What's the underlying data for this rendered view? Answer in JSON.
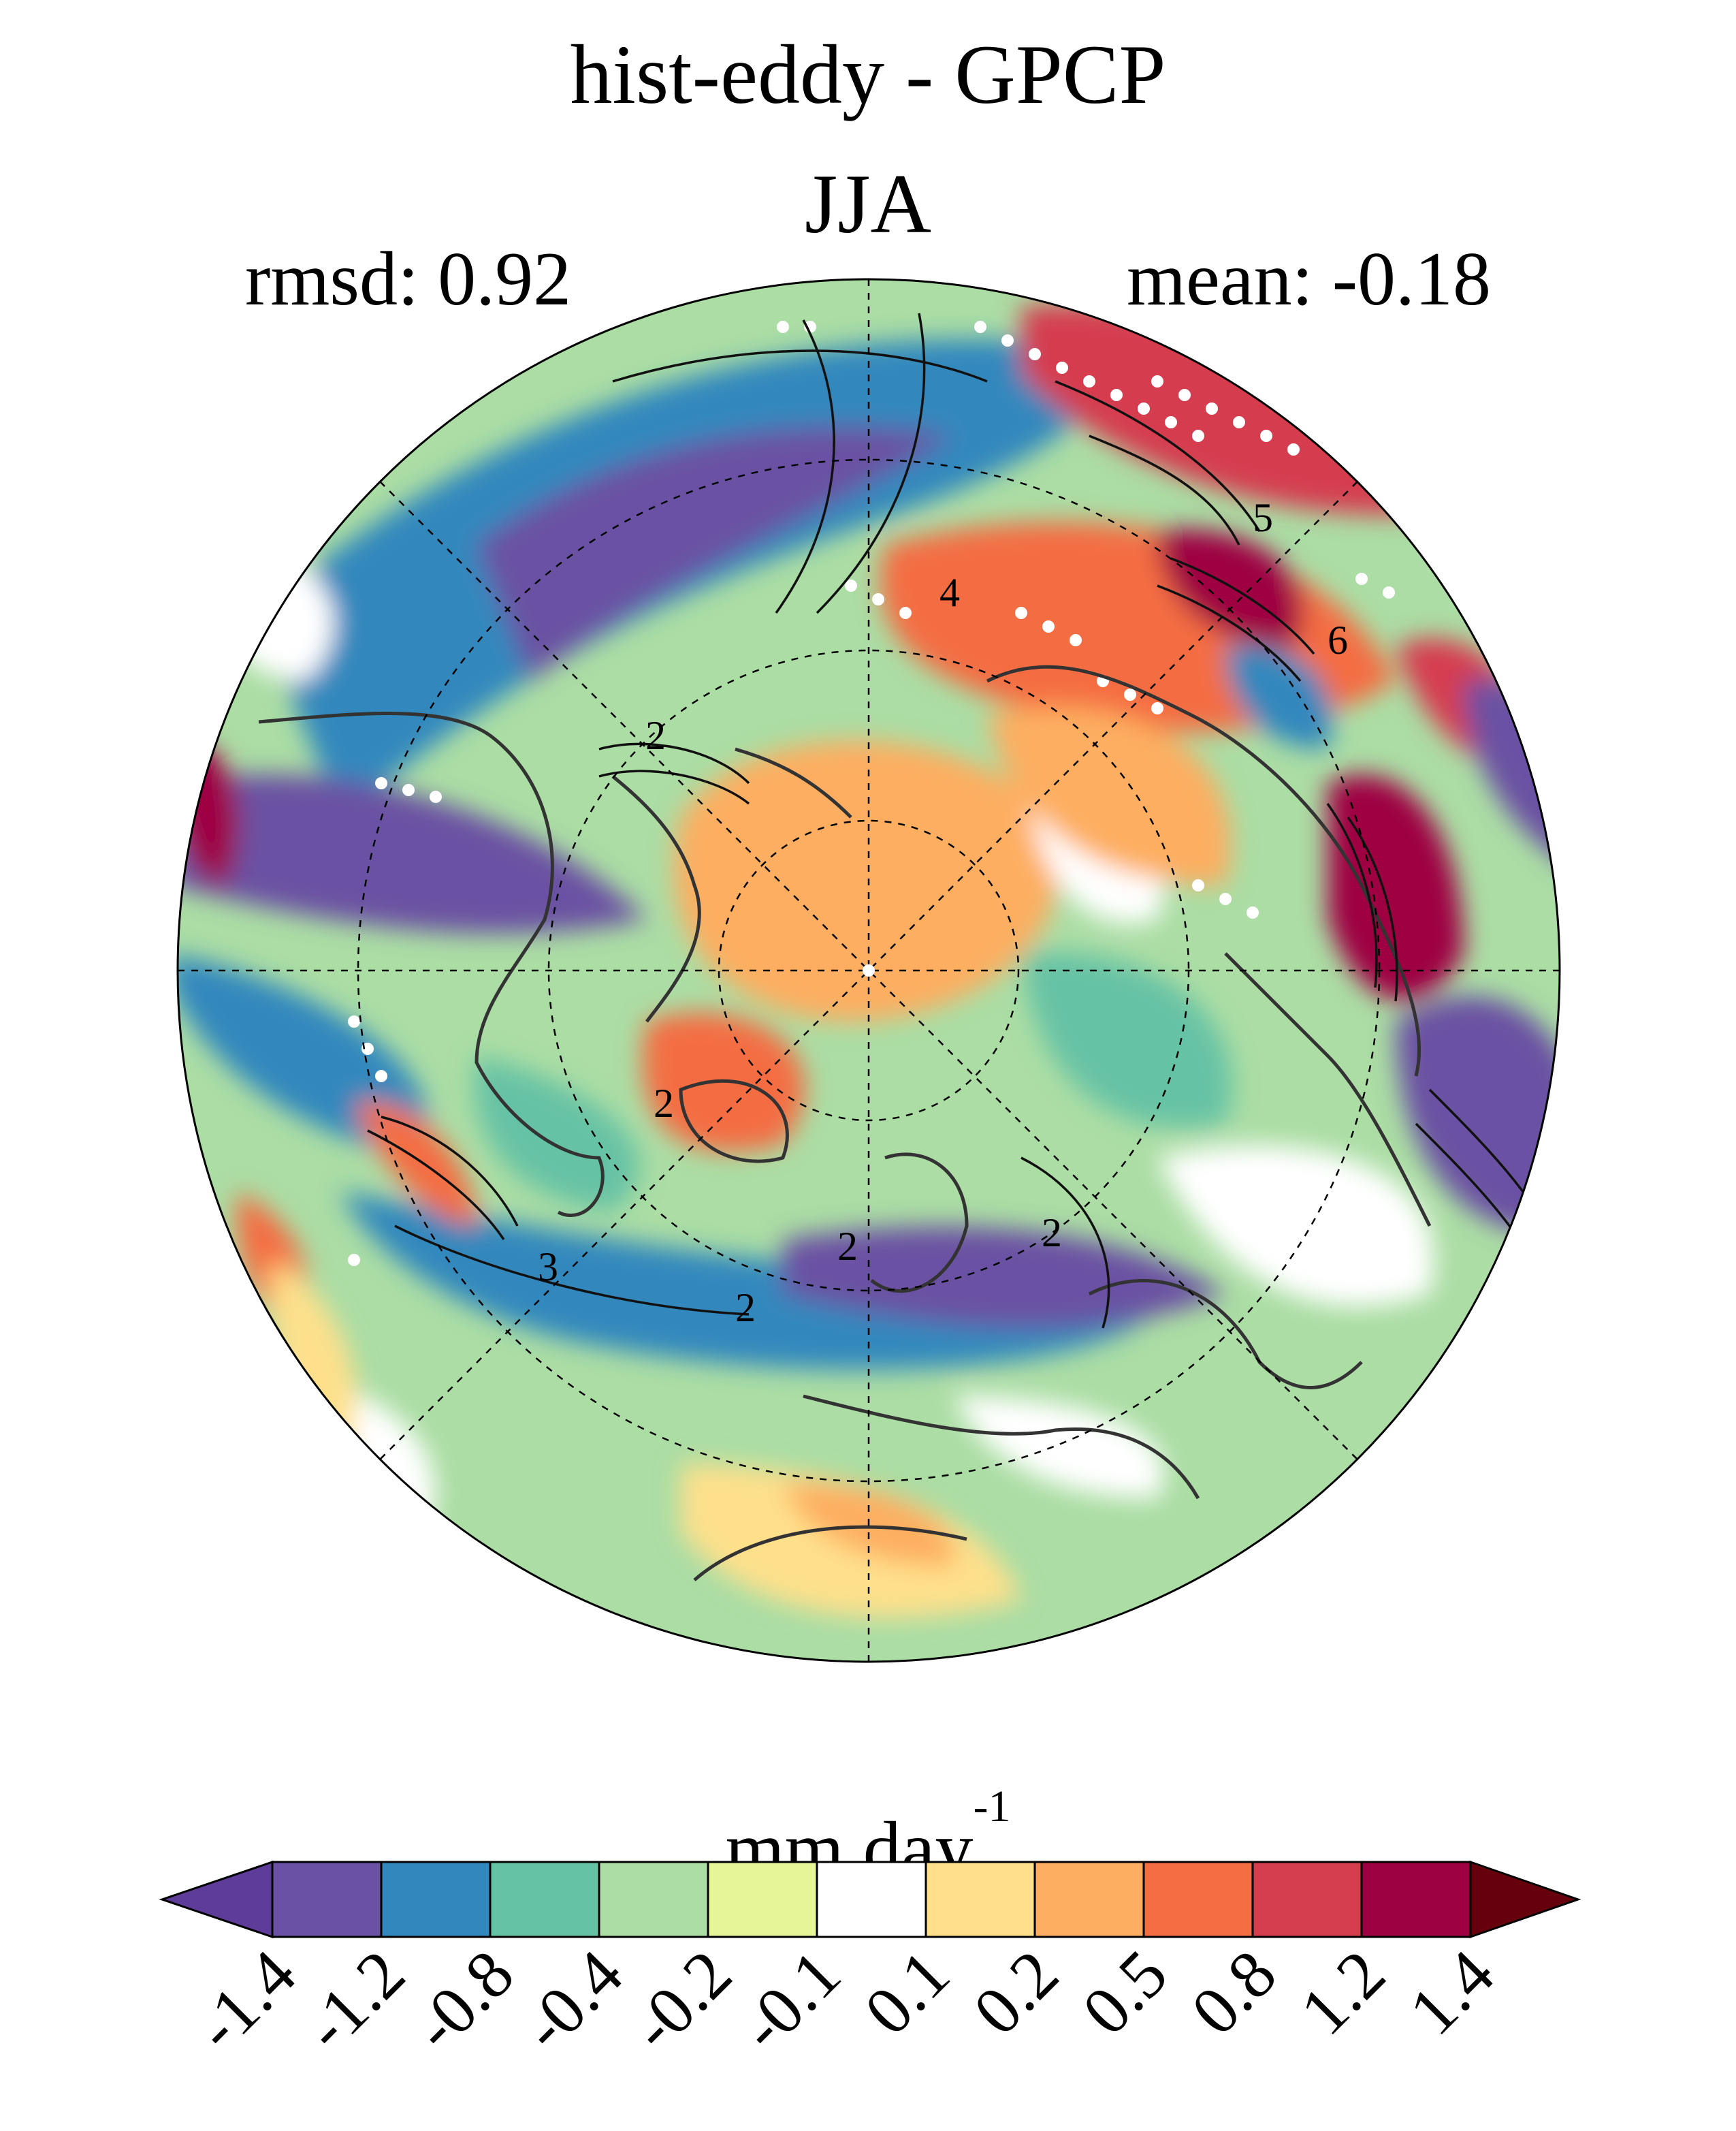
{
  "title": "hist-eddy - GPCP",
  "season": "JJA",
  "stats": {
    "rmsd_label": "rmsd: 0.92",
    "mean_label": "mean: -0.18"
  },
  "colorbar": {
    "units_base": "mm day",
    "units_exp": "-1",
    "tick_labels": [
      "-1.4",
      "-1.2",
      "-0.8",
      "-0.4",
      "-0.2",
      "-0.1",
      "0.1",
      "0.2",
      "0.5",
      "0.8",
      "1.2",
      "1.4"
    ],
    "colors": [
      "#5e3c99",
      "#6a51a3",
      "#3288bd",
      "#66c2a5",
      "#abdda4",
      "#e6f598",
      "#ffffff",
      "#fee08b",
      "#fdae61",
      "#f46d43",
      "#d53e4f",
      "#9e0142",
      "#67000d"
    ]
  },
  "map": {
    "projection": "north-polar-stereographic",
    "graticule": "dashed",
    "stippling": "white dots",
    "contour_labels": [
      "2",
      "2",
      "2",
      "2",
      "2",
      "3",
      "4",
      "5",
      "6"
    ]
  }
}
